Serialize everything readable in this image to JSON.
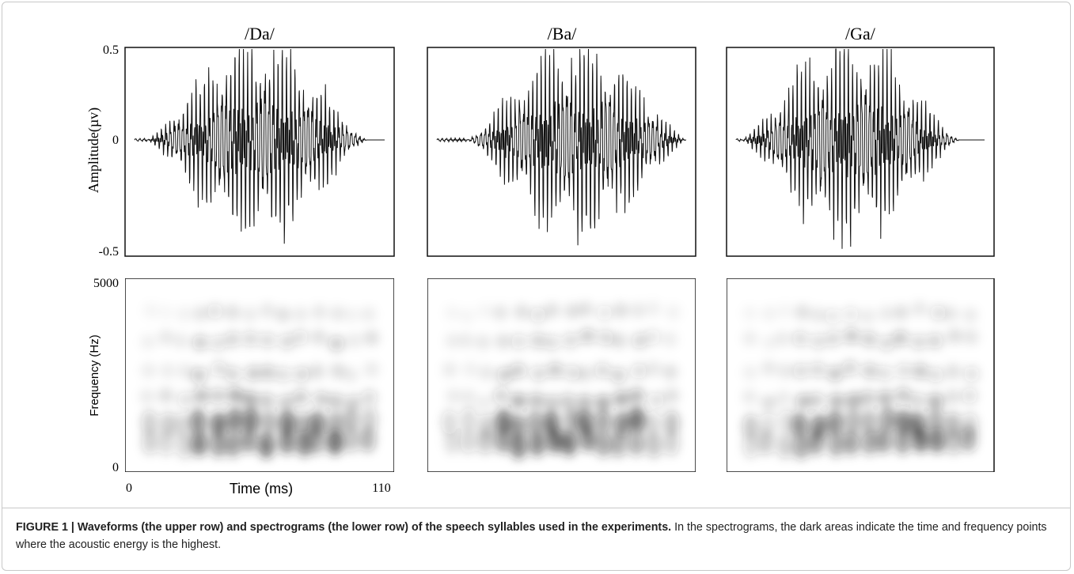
{
  "figure": {
    "panels": [
      {
        "title": "/Da/"
      },
      {
        "title": "/Ba/"
      },
      {
        "title": "/Ga/"
      }
    ],
    "waveform_axis": {
      "label": "Amplitude(µv)",
      "ticks": [
        0.5,
        0,
        -0.5
      ]
    },
    "spectrogram_axis": {
      "label": "Frequency (Hz)",
      "ticks": [
        5000,
        0
      ]
    },
    "time_axis": {
      "label": "Time (ms)",
      "ticks": [
        0,
        110
      ]
    }
  },
  "caption": {
    "label": "FIGURE 1 | ",
    "bold": "Waveforms (the upper row) and spectrograms (the lower row) of the speech syllables used in the experiments.",
    "text": " In the spectrograms, the dark areas indicate the time and frequency points where the acoustic energy is the highest."
  }
}
